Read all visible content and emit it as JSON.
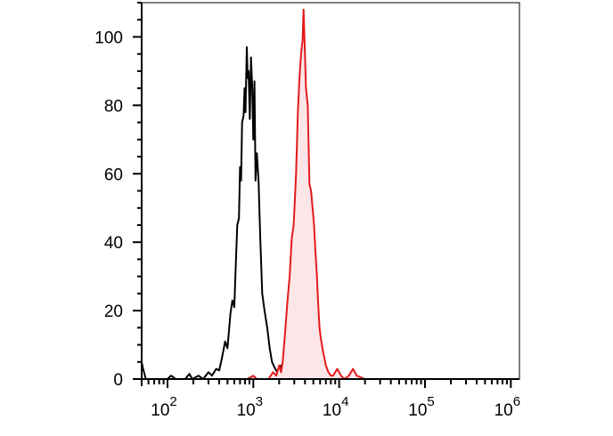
{
  "chart_data": {
    "type": "area",
    "x_scale": "log",
    "xlim": [
      50,
      1260000
    ],
    "ylim": [
      0,
      110
    ],
    "grid": false,
    "legend": "none",
    "yticks": [
      0,
      20,
      40,
      60,
      80,
      100
    ],
    "y_tick_labels": [
      "0",
      "20",
      "40",
      "60",
      "80",
      "100"
    ],
    "xticks": [
      100,
      1000,
      10000,
      100000,
      1000000
    ],
    "x_tick_labels": [
      {
        "base": "10",
        "exp": "2"
      },
      {
        "base": "10",
        "exp": "3"
      },
      {
        "base": "10",
        "exp": "4"
      },
      {
        "base": "10",
        "exp": "5"
      },
      {
        "base": "10",
        "exp": "6"
      }
    ],
    "series": [
      {
        "color": "#000000",
        "fill": "none",
        "points": [
          [
            50,
            5
          ],
          [
            52,
            3
          ],
          [
            56,
            0
          ],
          [
            80,
            0
          ],
          [
            100,
            0
          ],
          [
            110,
            1
          ],
          [
            125,
            0
          ],
          [
            160,
            0
          ],
          [
            180,
            1.5
          ],
          [
            195,
            0
          ],
          [
            230,
            1
          ],
          [
            260,
            0
          ],
          [
            300,
            2
          ],
          [
            330,
            1
          ],
          [
            370,
            3
          ],
          [
            400,
            2.5
          ],
          [
            430,
            6
          ],
          [
            470,
            11
          ],
          [
            500,
            9
          ],
          [
            540,
            19
          ],
          [
            570,
            23
          ],
          [
            600,
            21
          ],
          [
            620,
            31
          ],
          [
            650,
            45
          ],
          [
            680,
            47
          ],
          [
            700,
            62
          ],
          [
            720,
            58
          ],
          [
            740,
            75
          ],
          [
            770,
            77
          ],
          [
            790,
            85
          ],
          [
            810,
            78
          ],
          [
            840,
            97
          ],
          [
            860,
            88
          ],
          [
            880,
            90
          ],
          [
            910,
            76
          ],
          [
            940,
            94
          ],
          [
            970,
            85
          ],
          [
            1000,
            70
          ],
          [
            1030,
            87
          ],
          [
            1060,
            58
          ],
          [
            1100,
            66
          ],
          [
            1150,
            58
          ],
          [
            1200,
            42
          ],
          [
            1270,
            25
          ],
          [
            1350,
            20
          ],
          [
            1450,
            15
          ],
          [
            1550,
            9
          ],
          [
            1650,
            5
          ],
          [
            1800,
            3
          ],
          [
            1950,
            1.5
          ],
          [
            2100,
            4
          ],
          [
            2200,
            2
          ],
          [
            2400,
            1
          ],
          [
            2600,
            0
          ],
          [
            3000,
            0
          ]
        ]
      },
      {
        "color": "#e31a1c",
        "fill": "#fde6e7",
        "points": [
          [
            300,
            0
          ],
          [
            700,
            0
          ],
          [
            850,
            0
          ],
          [
            1000,
            1
          ],
          [
            1100,
            0
          ],
          [
            1500,
            0
          ],
          [
            1700,
            2
          ],
          [
            1850,
            1
          ],
          [
            2000,
            4
          ],
          [
            2100,
            2
          ],
          [
            2200,
            5
          ],
          [
            2350,
            14
          ],
          [
            2500,
            23
          ],
          [
            2650,
            30
          ],
          [
            2800,
            41
          ],
          [
            2950,
            45
          ],
          [
            3150,
            60
          ],
          [
            3300,
            78
          ],
          [
            3450,
            88
          ],
          [
            3600,
            95
          ],
          [
            3750,
            99
          ],
          [
            3850,
            108
          ],
          [
            3950,
            99
          ],
          [
            4100,
            85
          ],
          [
            4300,
            80
          ],
          [
            4500,
            57
          ],
          [
            4700,
            55
          ],
          [
            4900,
            50
          ],
          [
            5100,
            45
          ],
          [
            5300,
            37
          ],
          [
            5500,
            30
          ],
          [
            5700,
            22
          ],
          [
            5900,
            15
          ],
          [
            6100,
            12
          ],
          [
            6500,
            8
          ],
          [
            7000,
            4
          ],
          [
            7500,
            2
          ],
          [
            8000,
            1
          ],
          [
            8500,
            1
          ],
          [
            9500,
            3
          ],
          [
            10500,
            1
          ],
          [
            11500,
            0
          ],
          [
            13000,
            1
          ],
          [
            14500,
            3
          ],
          [
            16000,
            1
          ],
          [
            20000,
            0
          ]
        ]
      }
    ]
  }
}
